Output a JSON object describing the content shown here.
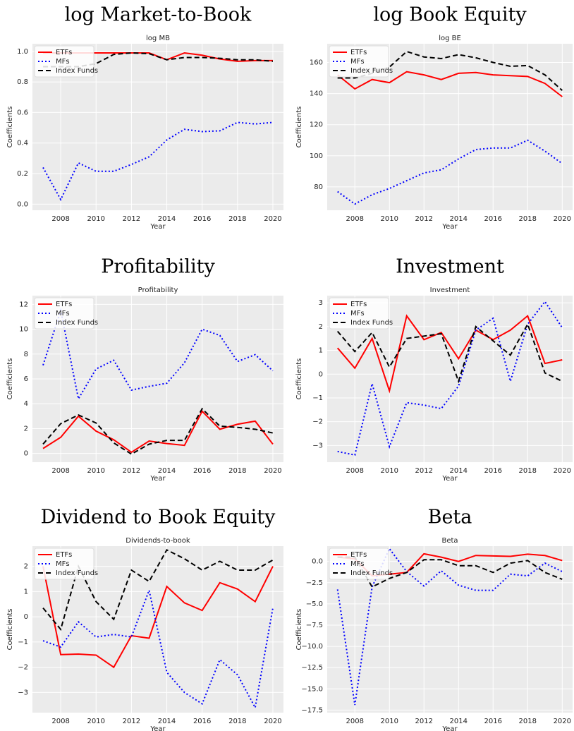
{
  "chart_data": [
    {
      "type": "line",
      "heading": "log Market-to-Book",
      "title": "log MB",
      "xlabel": "Year",
      "ylabel": "Coefficients",
      "x": [
        2007,
        2008,
        2009,
        2010,
        2011,
        2012,
        2013,
        2014,
        2015,
        2016,
        2017,
        2018,
        2019,
        2020
      ],
      "series": [
        {
          "name": "ETFs",
          "color": "#ff0000",
          "style": "solid",
          "values": [
            0.99,
            0.99,
            0.99,
            0.99,
            0.99,
            0.99,
            0.99,
            0.945,
            0.99,
            0.975,
            0.95,
            0.935,
            0.94,
            0.94
          ]
        },
        {
          "name": "MFs",
          "color": "#0000ff",
          "style": "dotted",
          "values": [
            0.24,
            0.03,
            0.27,
            0.215,
            0.215,
            0.26,
            0.31,
            0.42,
            0.49,
            0.475,
            0.48,
            0.535,
            0.525,
            0.535
          ]
        },
        {
          "name": "Index Funds",
          "color": "#000000",
          "style": "dashed",
          "values": [
            0.9,
            0.9,
            0.9,
            0.92,
            0.98,
            0.99,
            0.985,
            0.945,
            0.96,
            0.96,
            0.955,
            0.945,
            0.945,
            0.935
          ]
        }
      ],
      "xlim": [
        2006.4,
        2020.6
      ],
      "ylim": [
        -0.04,
        1.05
      ],
      "xticks": [
        2008,
        2010,
        2012,
        2014,
        2016,
        2018,
        2020
      ],
      "yticks": [
        {
          "value": 0,
          "label": "0.0"
        },
        0.2,
        0.4,
        0.6,
        0.8,
        {
          "value": 1,
          "label": "1.0"
        }
      ],
      "grid": true,
      "legend": "upper left"
    },
    {
      "type": "line",
      "heading": "log Book Equity",
      "title": "log BE",
      "xlabel": "Year",
      "ylabel": "Coefficients",
      "x": [
        2007,
        2008,
        2009,
        2010,
        2011,
        2012,
        2013,
        2014,
        2015,
        2016,
        2017,
        2018,
        2019,
        2020
      ],
      "series": [
        {
          "name": "ETFs",
          "color": "#ff0000",
          "style": "solid",
          "values": [
            152,
            143,
            149,
            147,
            154,
            152,
            149,
            153,
            153.5,
            152,
            151.5,
            151,
            146.5,
            138
          ]
        },
        {
          "name": "MFs",
          "color": "#0000ff",
          "style": "dotted",
          "values": [
            77,
            69,
            75,
            79,
            84,
            89,
            91,
            98,
            104,
            105,
            105,
            110,
            103,
            95
          ]
        },
        {
          "name": "Index Funds",
          "color": "#000000",
          "style": "dashed",
          "values": [
            150,
            150,
            153,
            157,
            167,
            163.5,
            162.5,
            165,
            163,
            160,
            157.5,
            158,
            152,
            142
          ]
        }
      ],
      "xlim": [
        2006.4,
        2020.6
      ],
      "ylim": [
        65,
        172
      ],
      "xticks": [
        2008,
        2010,
        2012,
        2014,
        2016,
        2018,
        2020
      ],
      "yticks": [
        80,
        100,
        120,
        140,
        160
      ],
      "grid": true,
      "legend": "upper left"
    },
    {
      "type": "line",
      "heading": "Profitability",
      "title": "Profitability",
      "xlabel": "Year",
      "ylabel": "Coefficients",
      "x": [
        2007,
        2008,
        2009,
        2010,
        2011,
        2012,
        2013,
        2014,
        2015,
        2016,
        2017,
        2018,
        2019,
        2020
      ],
      "series": [
        {
          "name": "ETFs",
          "color": "#ff0000",
          "style": "solid",
          "values": [
            0.4,
            1.3,
            3.0,
            1.8,
            1.1,
            0.1,
            1.0,
            0.8,
            0.65,
            3.4,
            1.95,
            2.35,
            2.6,
            0.75
          ]
        },
        {
          "name": "MFs",
          "color": "#0000ff",
          "style": "dotted",
          "values": [
            7.1,
            11.5,
            4.4,
            6.8,
            7.5,
            5.1,
            5.4,
            5.65,
            7.3,
            10.0,
            9.5,
            7.4,
            7.95,
            6.65
          ]
        },
        {
          "name": "Index Funds",
          "color": "#000000",
          "style": "dashed",
          "values": [
            0.75,
            2.4,
            3.1,
            2.45,
            0.85,
            -0.05,
            0.75,
            1.05,
            1.05,
            3.6,
            2.2,
            2.1,
            1.95,
            1.65
          ]
        }
      ],
      "xlim": [
        2006.4,
        2020.6
      ],
      "ylim": [
        -0.7,
        12.7
      ],
      "xticks": [
        2008,
        2010,
        2012,
        2014,
        2016,
        2018,
        2020
      ],
      "yticks": [
        0,
        2,
        4,
        6,
        8,
        10,
        12
      ],
      "grid": true,
      "legend": "upper left"
    },
    {
      "type": "line",
      "heading": "Investment",
      "title": "Investment",
      "xlabel": "Year",
      "ylabel": "Coefficients",
      "x": [
        2007,
        2008,
        2009,
        2010,
        2011,
        2012,
        2013,
        2014,
        2015,
        2016,
        2017,
        2018,
        2019,
        2020
      ],
      "series": [
        {
          "name": "ETFs",
          "color": "#ff0000",
          "style": "solid",
          "values": [
            1.1,
            0.25,
            1.5,
            -0.7,
            2.45,
            1.45,
            1.75,
            0.65,
            1.85,
            1.45,
            1.85,
            2.45,
            0.45,
            0.6
          ]
        },
        {
          "name": "MFs",
          "color": "#0000ff",
          "style": "dotted",
          "values": [
            -3.25,
            -3.4,
            -0.4,
            -3.05,
            -1.2,
            -1.3,
            -1.45,
            -0.5,
            1.85,
            2.35,
            -0.3,
            2.1,
            3.05,
            1.95
          ]
        },
        {
          "name": "Index Funds",
          "color": "#000000",
          "style": "dashed",
          "values": [
            1.8,
            0.95,
            1.75,
            0.3,
            1.5,
            1.6,
            1.7,
            -0.3,
            2.0,
            1.4,
            0.8,
            2.1,
            0.05,
            -0.3
          ]
        }
      ],
      "xlim": [
        2006.4,
        2020.6
      ],
      "ylim": [
        -3.7,
        3.3
      ],
      "xticks": [
        2008,
        2010,
        2012,
        2014,
        2016,
        2018,
        2020
      ],
      "yticks": [
        {
          "value": -3,
          "label": "−3"
        },
        {
          "value": -2,
          "label": "−2"
        },
        {
          "value": -1,
          "label": "−1"
        },
        0,
        1,
        2,
        3
      ],
      "grid": true,
      "legend": "upper left"
    },
    {
      "type": "line",
      "heading": "Dividend to Book Equity",
      "title": "Dividends-to-book",
      "xlabel": "Year",
      "ylabel": "Coefficients",
      "x": [
        2007,
        2008,
        2009,
        2010,
        2011,
        2012,
        2013,
        2014,
        2015,
        2016,
        2017,
        2018,
        2019,
        2020
      ],
      "series": [
        {
          "name": "ETFs",
          "color": "#ff0000",
          "style": "solid",
          "values": [
            2.0,
            -1.5,
            -1.48,
            -1.52,
            -2.0,
            -0.75,
            -0.85,
            1.2,
            0.55,
            0.25,
            1.35,
            1.1,
            0.6,
            2.0
          ]
        },
        {
          "name": "MFs",
          "color": "#0000ff",
          "style": "dotted",
          "values": [
            -0.95,
            -1.2,
            -0.2,
            -0.8,
            -0.7,
            -0.8,
            1.05,
            -2.2,
            -3.0,
            -3.45,
            -1.7,
            -2.3,
            -3.6,
            0.35
          ]
        },
        {
          "name": "Index Funds",
          "color": "#000000",
          "style": "dashed",
          "values": [
            0.35,
            -0.5,
            2.0,
            0.6,
            -0.1,
            1.85,
            1.4,
            2.65,
            2.3,
            1.85,
            2.2,
            1.85,
            1.85,
            2.25
          ]
        }
      ],
      "xlim": [
        2006.4,
        2020.6
      ],
      "ylim": [
        -3.8,
        2.8
      ],
      "xticks": [
        2008,
        2010,
        2012,
        2014,
        2016,
        2018,
        2020
      ],
      "yticks": [
        {
          "value": -3,
          "label": "−3"
        },
        {
          "value": -2,
          "label": "−2"
        },
        {
          "value": -1,
          "label": "−1"
        },
        0,
        1,
        2
      ],
      "grid": true,
      "legend": "upper left"
    },
    {
      "type": "line",
      "heading": "Beta",
      "title": "Beta",
      "xlabel": "Year",
      "ylabel": "Coefficients",
      "x": [
        2007,
        2008,
        2009,
        2010,
        2011,
        2012,
        2013,
        2014,
        2015,
        2016,
        2017,
        2018,
        2019,
        2020
      ],
      "series": [
        {
          "name": "ETFs",
          "color": "#ff0000",
          "style": "solid",
          "values": [
            0.5,
            0.3,
            -1.7,
            -1.5,
            -1.3,
            0.9,
            0.5,
            0.0,
            0.7,
            0.65,
            0.6,
            0.85,
            0.7,
            0.1
          ]
        },
        {
          "name": "MFs",
          "color": "#0000ff",
          "style": "dotted",
          "values": [
            -3.3,
            -16.9,
            -3.0,
            1.5,
            -1.2,
            -2.9,
            -1.1,
            -2.8,
            -3.4,
            -3.4,
            -1.5,
            -1.7,
            -0.2,
            -1.2
          ]
        },
        {
          "name": "Index Funds",
          "color": "#000000",
          "style": "dashed",
          "values": [
            0.5,
            0.5,
            -3.0,
            -2.0,
            -1.3,
            0.2,
            0.2,
            -0.5,
            -0.5,
            -1.3,
            -0.2,
            0.1,
            -1.3,
            -2.1
          ]
        }
      ],
      "xlim": [
        2006.4,
        2020.6
      ],
      "ylim": [
        -17.8,
        1.8
      ],
      "xticks": [
        2008,
        2010,
        2012,
        2014,
        2016,
        2018,
        2020
      ],
      "yticks": [
        {
          "value": -17.5,
          "label": "−17.5"
        },
        {
          "value": -15,
          "label": "−15.0"
        },
        {
          "value": -12.5,
          "label": "−12.5"
        },
        {
          "value": -10,
          "label": "−10.0"
        },
        {
          "value": -7.5,
          "label": "−7.5"
        },
        {
          "value": -5,
          "label": "−5.0"
        },
        {
          "value": -2.5,
          "label": "−2.5"
        },
        {
          "value": 0,
          "label": "0.0"
        }
      ],
      "grid": true,
      "legend": "upper left"
    }
  ]
}
